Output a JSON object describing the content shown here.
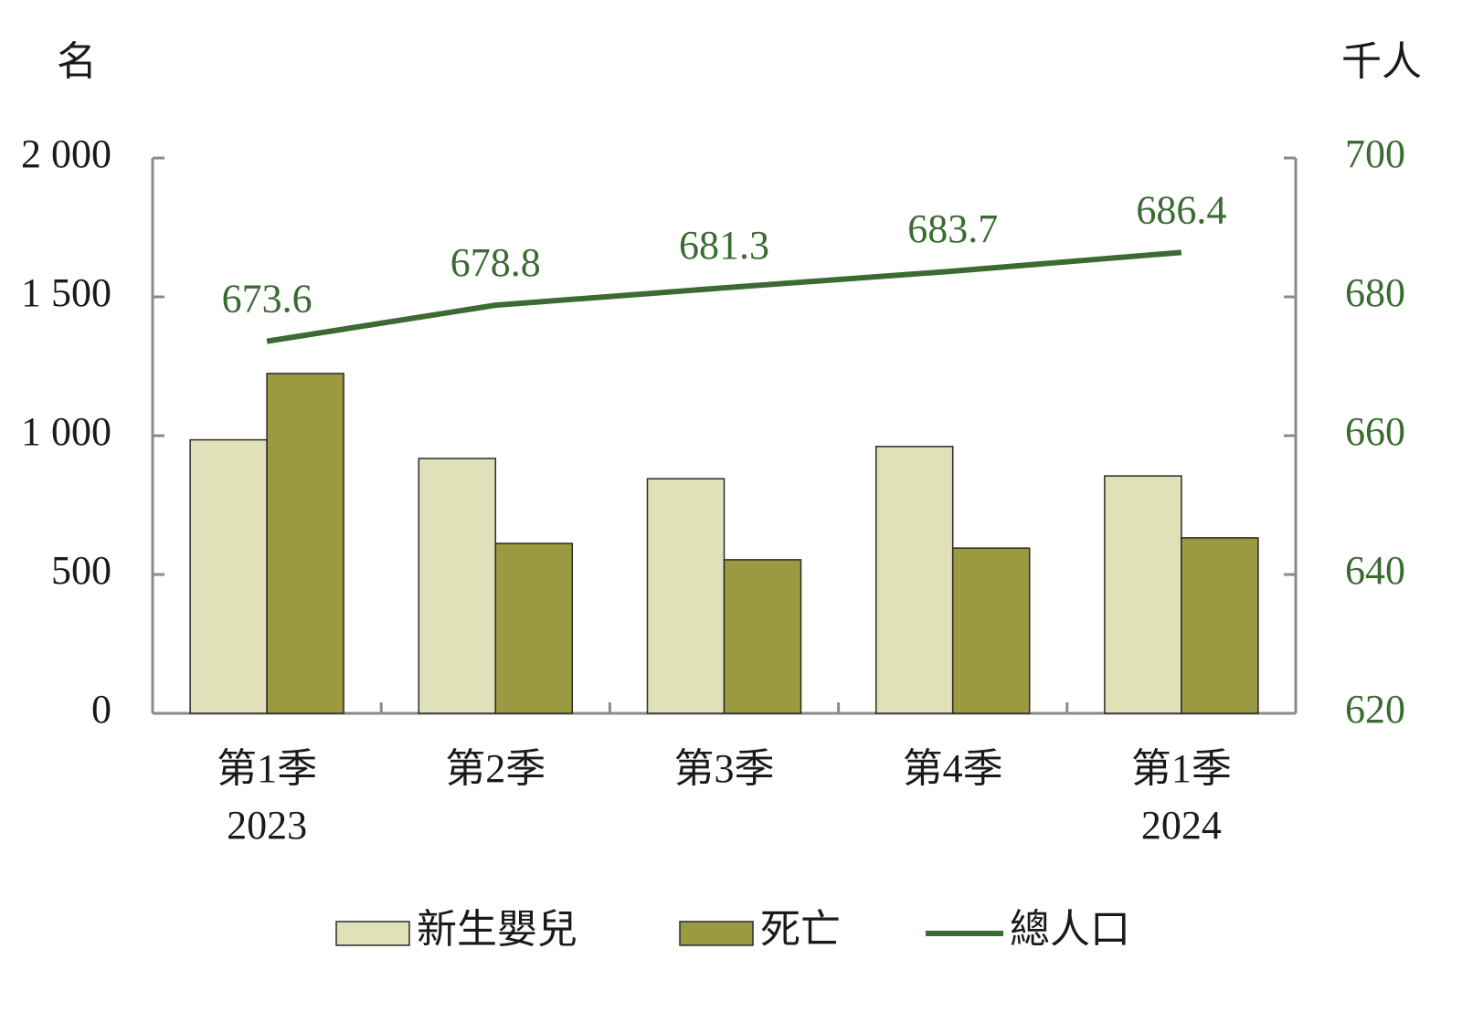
{
  "chart_data": {
    "type": "bar_line",
    "y_label": "名",
    "y2_label": "千人",
    "categories": [
      "第1季",
      "第2季",
      "第3季",
      "第4季",
      "第1季"
    ],
    "category_years": [
      "2023",
      null,
      null,
      null,
      "2024"
    ],
    "series": [
      {
        "name": "新生嬰兒",
        "type": "bar",
        "color": "#e1e1b9",
        "values": [
          985,
          918,
          845,
          961,
          855
        ]
      },
      {
        "name": "死亡",
        "type": "bar",
        "color": "#9b9a41",
        "values": [
          1224,
          612,
          553,
          595,
          632
        ]
      },
      {
        "name": "總人口",
        "type": "line",
        "axis": "y2",
        "color": "#3b6a33",
        "values": [
          673.6,
          678.8,
          681.3,
          683.7,
          686.4
        ]
      }
    ],
    "ylim": [
      0,
      2000
    ],
    "yticks": [
      0,
      500,
      {
        "value": 1000,
        "label": "1 000"
      },
      {
        "value": 1500,
        "label": "1 500"
      },
      {
        "value": 2000,
        "label": "2 000"
      }
    ],
    "y2lim": [
      620,
      700
    ],
    "y2ticks": [
      620,
      640,
      660,
      680,
      700
    ],
    "y2_color": "#3b6a33",
    "grid": false,
    "legend": "bottom"
  }
}
